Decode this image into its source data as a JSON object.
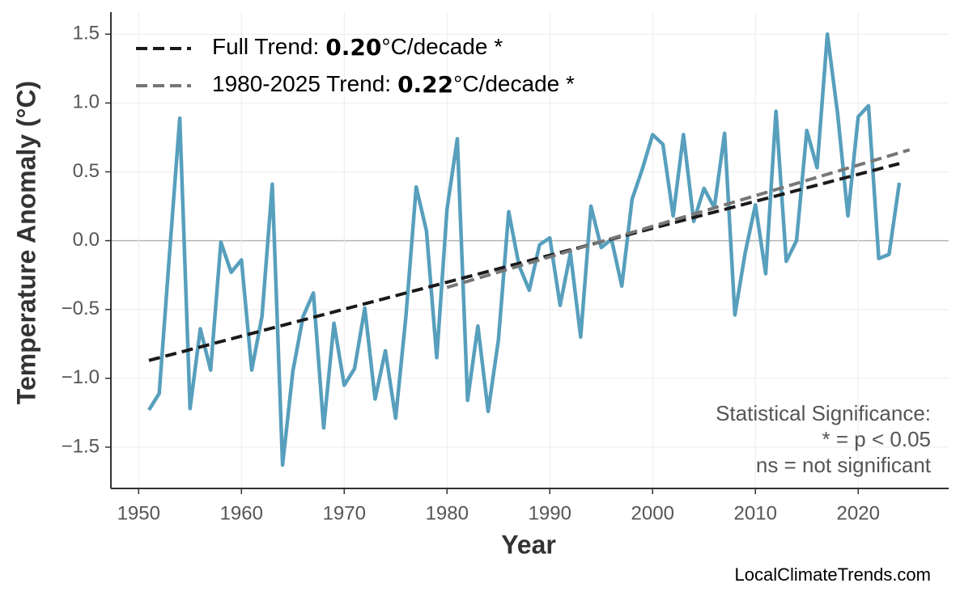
{
  "chart_data": {
    "type": "line",
    "xlabel": "Year",
    "ylabel": "Temperature Anomaly (°C)",
    "x": [
      1951,
      1952,
      1953,
      1954,
      1955,
      1956,
      1957,
      1958,
      1959,
      1960,
      1961,
      1962,
      1963,
      1964,
      1965,
      1966,
      1967,
      1968,
      1969,
      1970,
      1971,
      1972,
      1973,
      1974,
      1975,
      1976,
      1977,
      1978,
      1979,
      1980,
      1981,
      1982,
      1983,
      1984,
      1985,
      1986,
      1987,
      1988,
      1989,
      1990,
      1991,
      1992,
      1993,
      1994,
      1995,
      1996,
      1997,
      1998,
      1999,
      2000,
      2001,
      2002,
      2003,
      2004,
      2005,
      2006,
      2007,
      2008,
      2009,
      2010,
      2011,
      2012,
      2013,
      2014,
      2015,
      2016,
      2017,
      2018,
      2019,
      2020,
      2021,
      2022,
      2023,
      2024
    ],
    "series": [
      {
        "name": "Temperature Anomaly",
        "color": "#579fbd",
        "values": [
          -1.23,
          -1.11,
          -0.1,
          0.89,
          -1.22,
          -0.64,
          -0.94,
          -0.01,
          -0.23,
          -0.14,
          -0.94,
          -0.55,
          0.41,
          -1.63,
          -0.95,
          -0.55,
          -0.38,
          -1.36,
          -0.6,
          -1.05,
          -0.93,
          -0.49,
          -1.15,
          -0.8,
          -1.29,
          -0.55,
          0.39,
          0.07,
          -0.85,
          0.23,
          0.74,
          -1.16,
          -0.62,
          -1.24,
          -0.72,
          0.21,
          -0.18,
          -0.36,
          -0.03,
          0.02,
          -0.47,
          -0.09,
          -0.7,
          0.25,
          -0.05,
          0.01,
          -0.33,
          0.3,
          0.52,
          0.77,
          0.7,
          0.18,
          0.77,
          0.14,
          0.38,
          0.24,
          0.78,
          -0.54,
          -0.09,
          0.26,
          -0.24,
          0.94,
          -0.15,
          0.0,
          0.8,
          0.53,
          1.5,
          0.92,
          0.18,
          0.9,
          0.98,
          -0.13,
          -0.1,
          0.42
        ]
      },
      {
        "name": "Full Trend:",
        "slope_label": "0.20",
        "unit_label": "°C/decade *",
        "color": "#1a1a1a",
        "dashed": true,
        "x": [
          1951,
          2024
        ],
        "values": [
          -0.87,
          0.56
        ]
      },
      {
        "name": "1980-2025 Trend:",
        "slope_label": "0.22",
        "unit_label": "°C/decade *",
        "color": "#777777",
        "dashed": true,
        "x": [
          1980,
          2025
        ],
        "values": [
          -0.34,
          0.66
        ]
      }
    ],
    "xlim": [
      1947.3,
      2028.8
    ],
    "xticks": [
      1950,
      1960,
      1970,
      1980,
      1990,
      2000,
      2010,
      2020
    ],
    "ylim": [
      -1.8,
      1.66
    ],
    "yticks": [
      {
        "value": -1.5,
        "label": "−1.5"
      },
      {
        "value": -1.0,
        "label": "−1.0"
      },
      {
        "value": -0.5,
        "label": "−0.5"
      },
      {
        "value": 0.0,
        "label": "0.0"
      },
      0.5,
      {
        "value": 1.0,
        "label": "1.0"
      },
      1.5
    ],
    "grid": true,
    "annotation": [
      "Statistical Significance:",
      "* = p < 0.05",
      "ns = not significant"
    ],
    "source": "LocalClimateTrends.com"
  }
}
